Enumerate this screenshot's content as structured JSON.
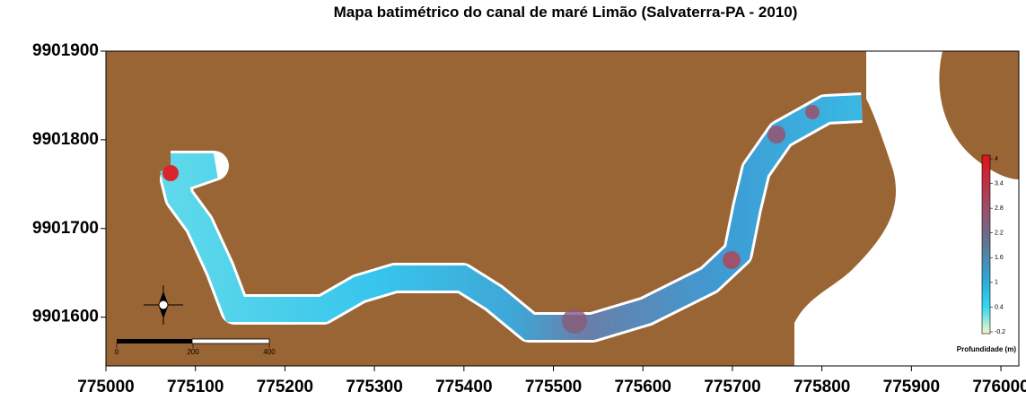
{
  "title": "Mapa batimétrico do canal de maré Limão (Salvaterra-PA - 2010)",
  "map": {
    "xlim": [
      775000,
      776020
    ],
    "xticks": [
      775000,
      775100,
      775200,
      775300,
      775400,
      775500,
      775600,
      775700,
      775800,
      775900,
      776000
    ],
    "ylim": [
      9901545,
      9901900
    ],
    "yticks": [
      9901600,
      9901700,
      9901800,
      9901900
    ]
  },
  "colorbar": {
    "title": "Profundidade (m)",
    "ticks": [
      4,
      3.4,
      2.8,
      2.2,
      1.6,
      1,
      0.4,
      -0.2
    ]
  },
  "scale_bar": {
    "ticks": [
      0,
      200,
      400
    ]
  }
}
